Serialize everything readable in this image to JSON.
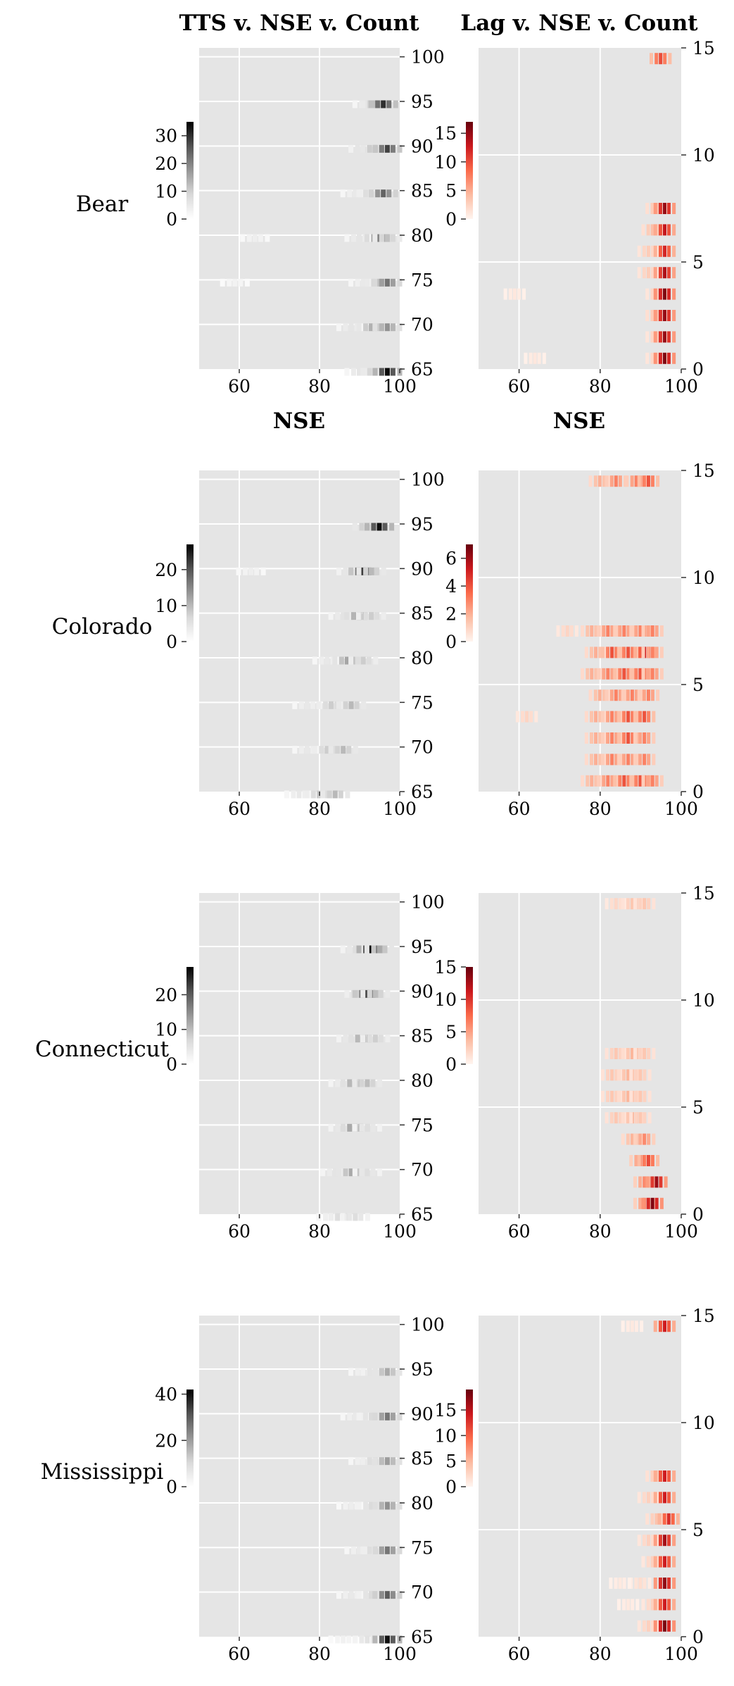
{
  "colors": {
    "panel_bg": "#e5e5e5",
    "grid": "#ffffff",
    "tts_cmap": [
      "#ffffff",
      "#d9d9d9",
      "#969696",
      "#525252",
      "#000000"
    ],
    "lag_cmap": [
      "#fff5f0",
      "#fcbba1",
      "#fb6a4a",
      "#cb181d",
      "#67000d"
    ]
  },
  "chart_data": {
    "type": "heatmap",
    "columns": [
      {
        "title": "TTS v. NSE v. Count",
        "y_ticks": [
          65,
          70,
          75,
          80,
          85,
          90,
          95,
          100
        ]
      },
      {
        "title": "Lag v. NSE v. Count",
        "y_ticks": [
          0,
          5,
          10,
          15
        ]
      }
    ],
    "xlabel": "NSE",
    "xlim": [
      50,
      100
    ],
    "x_ticks": [
      60,
      80,
      100
    ],
    "tts_ylim": [
      65,
      101
    ],
    "lag_ylim": [
      0,
      15
    ],
    "rows": [
      {
        "label": "Bear",
        "tts": {
          "colorbar_ticks": [
            0,
            10,
            20,
            30
          ],
          "colorbar_max": 35,
          "cells": [
            [
              95,
              92,
              6
            ],
            [
              95,
              94,
              12
            ],
            [
              95,
              96,
              30
            ],
            [
              90,
              91,
              8
            ],
            [
              90,
              94,
              14
            ],
            [
              90,
              97,
              28
            ],
            [
              85,
              89,
              5
            ],
            [
              85,
              93,
              10
            ],
            [
              85,
              96,
              24
            ],
            [
              80,
              90,
              6
            ],
            [
              80,
              95,
              20
            ],
            [
              80,
              97,
              12
            ],
            [
              80,
              64,
              4
            ],
            [
              75,
              91,
              5
            ],
            [
              75,
              95,
              12
            ],
            [
              75,
              97,
              22
            ],
            [
              75,
              59,
              3
            ],
            [
              70,
              88,
              6
            ],
            [
              70,
              93,
              14
            ],
            [
              70,
              97,
              18
            ],
            [
              65,
              90,
              6
            ],
            [
              65,
              94,
              12
            ],
            [
              65,
              97,
              34
            ]
          ]
        },
        "lag": {
          "colorbar_ticks": [
            0,
            5,
            10,
            15
          ],
          "colorbar_max": 17,
          "cells": [
            [
              14,
              95,
              10
            ],
            [
              7,
              94,
              4
            ],
            [
              7,
              96,
              15
            ],
            [
              6,
              93,
              4
            ],
            [
              6,
              96,
              13
            ],
            [
              5,
              92,
              3
            ],
            [
              5,
              96,
              12
            ],
            [
              4,
              92,
              3
            ],
            [
              4,
              96,
              14
            ],
            [
              3,
              94,
              3
            ],
            [
              3,
              96,
              16
            ],
            [
              2,
              94,
              4
            ],
            [
              2,
              96,
              15
            ],
            [
              1,
              94,
              3
            ],
            [
              1,
              96,
              15
            ],
            [
              0,
              94,
              3
            ],
            [
              0,
              96,
              16
            ],
            [
              3,
              59,
              1
            ],
            [
              0,
              64,
              1
            ]
          ]
        }
      },
      {
        "label": "Colorado",
        "tts": {
          "colorbar_ticks": [
            0,
            10,
            20
          ],
          "colorbar_max": 27,
          "cells": [
            [
              95,
              92,
              10
            ],
            [
              95,
              95,
              26
            ],
            [
              90,
              88,
              6
            ],
            [
              90,
              91,
              22
            ],
            [
              90,
              93,
              10
            ],
            [
              90,
              63,
              3
            ],
            [
              85,
              86,
              5
            ],
            [
              85,
              90,
              14
            ],
            [
              85,
              93,
              8
            ],
            [
              80,
              82,
              4
            ],
            [
              80,
              87,
              12
            ],
            [
              80,
              91,
              8
            ],
            [
              75,
              77,
              4
            ],
            [
              75,
              83,
              8
            ],
            [
              75,
              88,
              10
            ],
            [
              70,
              77,
              4
            ],
            [
              70,
              82,
              8
            ],
            [
              70,
              86,
              10
            ],
            [
              65,
              75,
              4
            ],
            [
              65,
              80,
              8
            ],
            [
              65,
              84,
              10
            ]
          ]
        },
        "lag": {
          "colorbar_ticks": [
            0,
            2,
            4,
            6
          ],
          "colorbar_max": 7,
          "cells": [
            [
              14,
              80,
              2
            ],
            [
              14,
              84,
              3
            ],
            [
              14,
              89,
              3
            ],
            [
              14,
              92,
              4
            ],
            [
              7,
              78,
              2
            ],
            [
              7,
              82,
              3
            ],
            [
              7,
              86,
              3
            ],
            [
              7,
              90,
              3
            ],
            [
              7,
              93,
              3
            ],
            [
              6,
              79,
              2
            ],
            [
              6,
              83,
              4
            ],
            [
              6,
              87,
              4
            ],
            [
              6,
              91,
              5
            ],
            [
              6,
              93,
              3
            ],
            [
              5,
              78,
              2
            ],
            [
              5,
              82,
              3
            ],
            [
              5,
              86,
              4
            ],
            [
              5,
              90,
              4
            ],
            [
              5,
              93,
              3
            ],
            [
              4,
              80,
              2
            ],
            [
              4,
              84,
              3
            ],
            [
              4,
              88,
              3
            ],
            [
              4,
              92,
              3
            ],
            [
              3,
              79,
              2
            ],
            [
              3,
              83,
              3
            ],
            [
              3,
              87,
              4
            ],
            [
              3,
              91,
              4
            ],
            [
              2,
              79,
              2
            ],
            [
              2,
              83,
              3
            ],
            [
              2,
              87,
              4
            ],
            [
              2,
              91,
              3
            ],
            [
              1,
              79,
              2
            ],
            [
              1,
              83,
              3
            ],
            [
              1,
              87,
              3
            ],
            [
              1,
              91,
              3
            ],
            [
              0,
              78,
              2
            ],
            [
              0,
              82,
              3
            ],
            [
              0,
              86,
              4
            ],
            [
              0,
              90,
              4
            ],
            [
              0,
              93,
              3
            ],
            [
              3,
              62,
              1
            ],
            [
              7,
              72,
              1
            ]
          ]
        }
      },
      {
        "label": "Connecticut",
        "tts": {
          "colorbar_ticks": [
            0,
            10,
            20
          ],
          "colorbar_max": 28,
          "cells": [
            [
              95,
              89,
              6
            ],
            [
              95,
              93,
              28
            ],
            [
              95,
              95,
              12
            ],
            [
              90,
              90,
              8
            ],
            [
              90,
              92,
              22
            ],
            [
              90,
              94,
              10
            ],
            [
              85,
              88,
              6
            ],
            [
              85,
              91,
              14
            ],
            [
              85,
              94,
              8
            ],
            [
              80,
              86,
              5
            ],
            [
              80,
              89,
              14
            ],
            [
              80,
              92,
              10
            ],
            [
              75,
              86,
              6
            ],
            [
              75,
              89,
              16
            ],
            [
              75,
              92,
              6
            ],
            [
              70,
              84,
              5
            ],
            [
              70,
              88,
              12
            ],
            [
              70,
              92,
              6
            ],
            [
              65,
              83,
              4
            ],
            [
              65,
              86,
              8
            ],
            [
              65,
              89,
              6
            ]
          ]
        },
        "lag": {
          "colorbar_ticks": [
            0,
            5,
            10,
            15
          ],
          "colorbar_max": 15,
          "cells": [
            [
              14,
              84,
              2
            ],
            [
              14,
              88,
              3
            ],
            [
              14,
              91,
              3
            ],
            [
              7,
              84,
              3
            ],
            [
              7,
              88,
              4
            ],
            [
              7,
              91,
              3
            ],
            [
              6,
              83,
              3
            ],
            [
              6,
              87,
              4
            ],
            [
              6,
              90,
              3
            ],
            [
              5,
              83,
              3
            ],
            [
              5,
              87,
              4
            ],
            [
              5,
              90,
              3
            ],
            [
              4,
              84,
              3
            ],
            [
              4,
              88,
              4
            ],
            [
              4,
              90,
              3
            ],
            [
              3,
              88,
              4
            ],
            [
              3,
              91,
              6
            ],
            [
              2,
              90,
              6
            ],
            [
              2,
              92,
              9
            ],
            [
              1,
              91,
              6
            ],
            [
              1,
              94,
              13
            ],
            [
              0,
              91,
              6
            ],
            [
              0,
              93,
              14
            ]
          ]
        }
      },
      {
        "label": "Mississippi",
        "tts": {
          "colorbar_ticks": [
            0,
            20,
            40
          ],
          "colorbar_max": 42,
          "cells": [
            [
              95,
              91,
              6
            ],
            [
              95,
              94,
              10
            ],
            [
              95,
              97,
              18
            ],
            [
              90,
              89,
              6
            ],
            [
              90,
              93,
              10
            ],
            [
              90,
              97,
              26
            ],
            [
              85,
              91,
              6
            ],
            [
              85,
              94,
              12
            ],
            [
              85,
              97,
              20
            ],
            [
              80,
              88,
              5
            ],
            [
              80,
              93,
              10
            ],
            [
              80,
              97,
              22
            ],
            [
              75,
              90,
              6
            ],
            [
              75,
              94,
              12
            ],
            [
              75,
              97,
              26
            ],
            [
              70,
              88,
              6
            ],
            [
              70,
              93,
              10
            ],
            [
              70,
              97,
              30
            ],
            [
              65,
              86,
              4
            ],
            [
              65,
              92,
              8
            ],
            [
              65,
              97,
              40
            ]
          ]
        },
        "lag": {
          "colorbar_ticks": [
            0,
            5,
            10,
            15
          ],
          "colorbar_max": 19,
          "cells": [
            [
              14,
              88,
              1
            ],
            [
              14,
              96,
              14
            ],
            [
              7,
              94,
              4
            ],
            [
              7,
              96,
              14
            ],
            [
              6,
              92,
              3
            ],
            [
              6,
              96,
              14
            ],
            [
              5,
              94,
              4
            ],
            [
              5,
              97,
              13
            ],
            [
              4,
              92,
              3
            ],
            [
              4,
              96,
              16
            ],
            [
              3,
              93,
              3
            ],
            [
              3,
              96,
              14
            ],
            [
              2,
              90,
              2
            ],
            [
              2,
              96,
              17
            ],
            [
              1,
              93,
              3
            ],
            [
              1,
              96,
              14
            ],
            [
              0,
              92,
              3
            ],
            [
              0,
              96,
              18
            ],
            [
              2,
              85,
              1
            ],
            [
              1,
              87,
              1
            ]
          ]
        }
      }
    ]
  }
}
